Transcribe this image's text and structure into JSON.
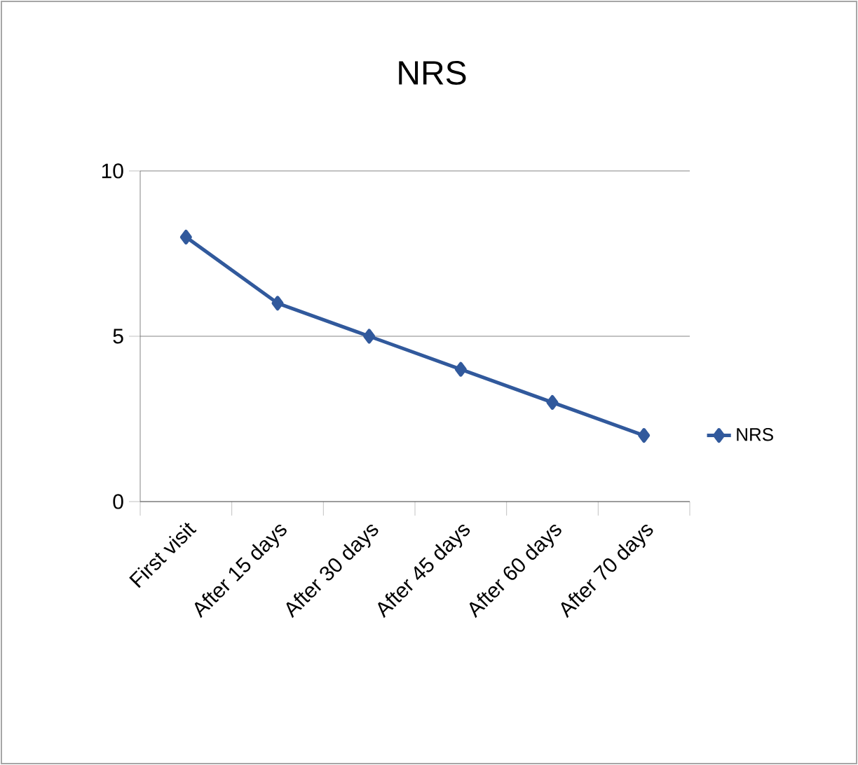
{
  "chart_data": {
    "type": "line",
    "title": "NRS",
    "categories": [
      "First visit",
      "After 15 days",
      "After 30 days",
      "After 45 days",
      "After 60 days",
      "After 70 days"
    ],
    "series": [
      {
        "name": "NRS",
        "color": "#31599c",
        "values": [
          8,
          6,
          5,
          4,
          3,
          2
        ]
      }
    ],
    "ylim": [
      0,
      10
    ],
    "yticks": [
      0,
      5,
      10
    ],
    "grid": "y",
    "legend": "right",
    "marker": "diamond",
    "line_style": "solid"
  }
}
